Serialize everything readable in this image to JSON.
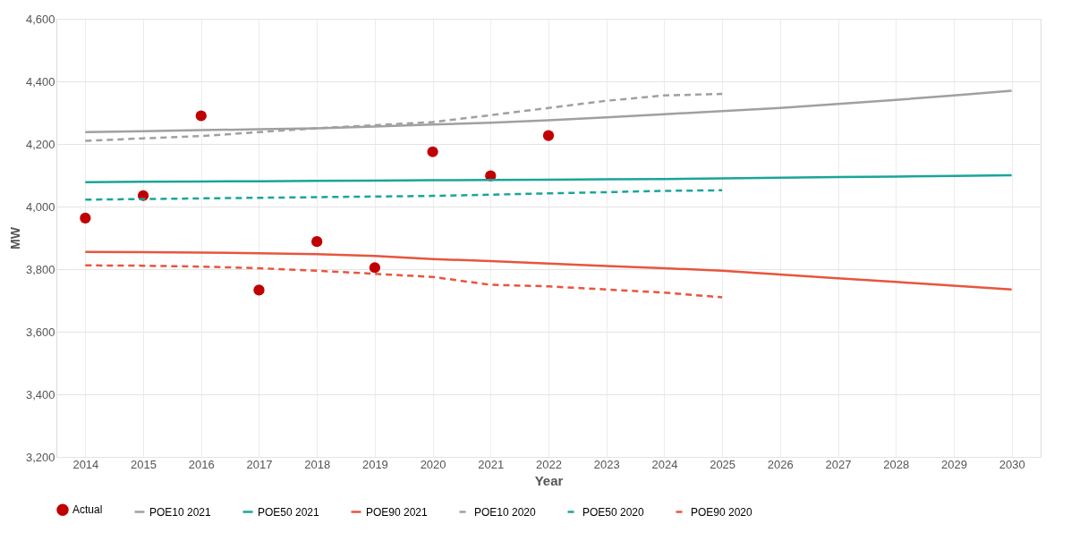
{
  "chart_data": {
    "type": "line",
    "xlabel": "Year",
    "ylabel": "MW",
    "categories": [
      "2014",
      "2015",
      "2016",
      "2017",
      "2018",
      "2019",
      "2020",
      "2021",
      "2022",
      "2023",
      "2024",
      "2025",
      "2026",
      "2027",
      "2028",
      "2029",
      "2030"
    ],
    "ylim": [
      3200,
      4600
    ],
    "yticks": [
      {
        "value": 3200,
        "label": "3,200"
      },
      {
        "value": 3400,
        "label": "3,400"
      },
      {
        "value": 3600,
        "label": "3,600"
      },
      {
        "value": 3800,
        "label": "3,800"
      },
      {
        "value": 4000,
        "label": "4,000"
      },
      {
        "value": 4200,
        "label": "4,200"
      },
      {
        "value": 4400,
        "label": "4,400"
      },
      {
        "value": 4600,
        "label": "4,600"
      }
    ],
    "grid": true,
    "legend": "bottom",
    "series": [
      {
        "name": "Actual",
        "type": "scatter",
        "marker": "circle",
        "color": "#c00000",
        "values": [
          3963,
          4035,
          4290,
          3733,
          3888,
          3805,
          4175,
          4098,
          4227,
          null,
          null,
          null,
          null,
          null,
          null,
          null,
          null
        ]
      },
      {
        "name": "POE10 2021",
        "line_style": "solid",
        "color": "#a0a0a0",
        "values": [
          4238,
          4241,
          4244,
          4247,
          4250,
          4256,
          4262,
          4268,
          4276,
          4285,
          4295,
          4305,
          4315,
          4328,
          4341,
          4355,
          4370
        ]
      },
      {
        "name": "POE50 2021",
        "line_style": "solid",
        "color": "#1aa59a",
        "values": [
          4078,
          4079,
          4080,
          4081,
          4082,
          4083,
          4084,
          4085,
          4086,
          4087,
          4088,
          4090,
          4092,
          4094,
          4096,
          4098,
          4100
        ]
      },
      {
        "name": "POE90 2021",
        "line_style": "solid",
        "color": "#e8553e",
        "values": [
          3855,
          3854,
          3853,
          3851,
          3848,
          3842,
          3832,
          3826,
          3818,
          3810,
          3803,
          3795,
          3783,
          3771,
          3759,
          3747,
          3735
        ]
      },
      {
        "name": "POE10 2020",
        "line_style": "dashed",
        "color": "#a0a0a0",
        "values": [
          4210,
          4218,
          4225,
          4238,
          4250,
          4260,
          4270,
          4292,
          4315,
          4338,
          4355,
          4360,
          null,
          null,
          null,
          null,
          null
        ]
      },
      {
        "name": "POE50 2020",
        "line_style": "dashed",
        "color": "#1aa59a",
        "values": [
          4022,
          4024,
          4026,
          4028,
          4030,
          4032,
          4034,
          4038,
          4042,
          4046,
          4050,
          4052,
          null,
          null,
          null,
          null,
          null
        ]
      },
      {
        "name": "POE90 2020",
        "line_style": "dashed",
        "color": "#e8553e",
        "values": [
          3812,
          3811,
          3808,
          3803,
          3795,
          3785,
          3775,
          3750,
          3745,
          3735,
          3725,
          3710,
          null,
          null,
          null,
          null,
          null
        ]
      }
    ]
  }
}
